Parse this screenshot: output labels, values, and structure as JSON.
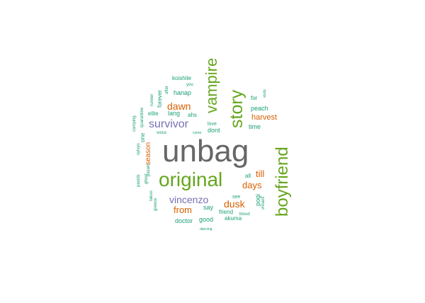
{
  "colors": {
    "gray": "#666666",
    "green": "#66a61e",
    "orange": "#d95f02",
    "purple": "#7570b3",
    "teal": "#1b9e77"
  },
  "words": [
    {
      "text": "unbag",
      "color": "gray"
    },
    {
      "text": "original",
      "color": "green"
    },
    {
      "text": "boyfriend",
      "color": "green"
    },
    {
      "text": "story",
      "color": "green"
    },
    {
      "text": "vampire",
      "color": "green"
    },
    {
      "text": "survivor",
      "color": "purple"
    },
    {
      "text": "vincenzo",
      "color": "purple"
    },
    {
      "text": "dawn",
      "color": "orange"
    },
    {
      "text": "dusk",
      "color": "orange"
    },
    {
      "text": "days",
      "color": "orange"
    },
    {
      "text": "till",
      "color": "orange"
    },
    {
      "text": "from",
      "color": "orange"
    },
    {
      "text": "harvest",
      "color": "orange"
    },
    {
      "text": "season",
      "color": "orange"
    },
    {
      "text": "peach",
      "color": "teal"
    },
    {
      "text": "for",
      "color": "teal"
    },
    {
      "text": "time",
      "color": "teal"
    },
    {
      "text": "koishite",
      "color": "teal"
    },
    {
      "text": "hanap",
      "color": "teal"
    },
    {
      "text": "lang",
      "color": "teal"
    },
    {
      "text": "ahs",
      "color": "teal"
    },
    {
      "text": "elite",
      "color": "teal"
    },
    {
      "text": "dont",
      "color": "teal"
    },
    {
      "text": "forever",
      "color": "teal"
    },
    {
      "text": "say",
      "color": "teal"
    },
    {
      "text": "good",
      "color": "teal"
    },
    {
      "text": "doctor",
      "color": "teal"
    },
    {
      "text": "friend",
      "color": "teal"
    },
    {
      "text": "akuma",
      "color": "teal"
    },
    {
      "text": "pogi",
      "color": "teal"
    },
    {
      "text": "all",
      "color": "teal"
    },
    {
      "text": "see",
      "color": "teal"
    },
    {
      "text": "one",
      "color": "teal"
    },
    {
      "text": "love",
      "color": "teal"
    },
    {
      "text": "you",
      "color": "teal"
    },
    {
      "text": "after",
      "color": "teal"
    },
    {
      "text": "runner",
      "color": "teal"
    },
    {
      "text": "quarantine",
      "color": "teal"
    },
    {
      "text": "camping",
      "color": "teal"
    },
    {
      "text": "voice",
      "color": "teal"
    },
    {
      "text": "come",
      "color": "teal"
    },
    {
      "text": "sylvyo",
      "color": "teal"
    },
    {
      "text": "ghost",
      "color": "teal"
    },
    {
      "text": "pasalo",
      "color": "teal"
    },
    {
      "text": "paoids",
      "color": "teal"
    },
    {
      "text": "takun",
      "color": "teal"
    },
    {
      "text": "greece",
      "color": "teal"
    },
    {
      "text": "blood",
      "color": "teal"
    },
    {
      "text": "vivians",
      "color": "teal"
    },
    {
      "text": "dancing",
      "color": "teal"
    },
    {
      "text": "study",
      "color": "teal"
    }
  ]
}
